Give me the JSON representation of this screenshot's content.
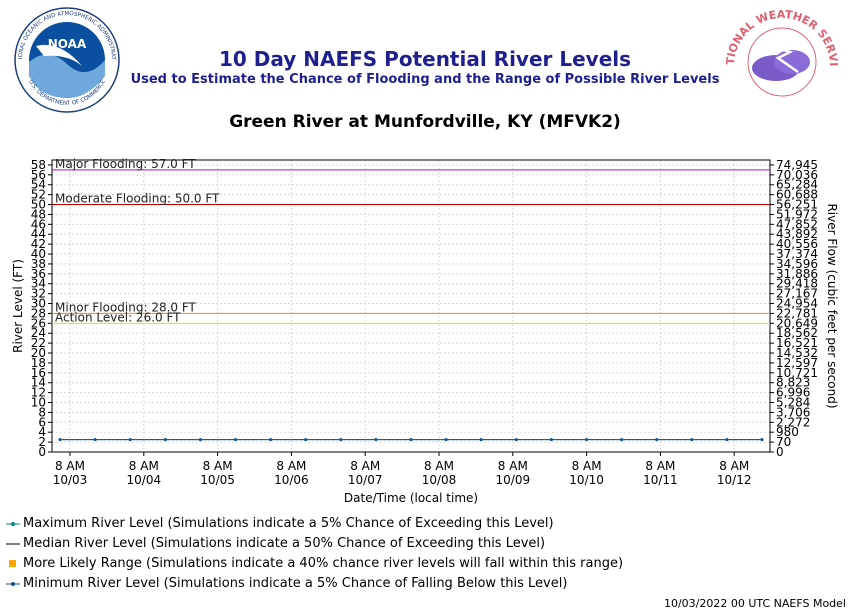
{
  "header": {
    "title": "10 Day NAEFS Potential River Levels",
    "subtitle": "Used to Estimate the Chance of Flooding and the Range of Possible River Levels",
    "station": "Green River at Munfordville, KY (MFVK2)",
    "noaa_logo_text": "NOAA",
    "noaa_ring_text": "NATIONAL OCEANIC AND ATMOSPHERIC ADMINISTRATION",
    "noaa_ring_bottom": "U.S. DEPARTMENT OF COMMERCE",
    "nws_ring_text": "NATIONAL WEATHER SERVICE"
  },
  "footer": {
    "text": "10/03/2022 00 UTC NAEFS Model"
  },
  "legend": [
    {
      "label": "Maximum River Level (Simulations indicate a 5% Chance of Exceeding this Level)",
      "symbol": "line-dot",
      "color": "#008b8b"
    },
    {
      "label": "Median River Level (Simulations indicate a 50% Chance of Exceeding this Level)",
      "symbol": "line",
      "color": "#000000"
    },
    {
      "label": "More Likely Range (Simulations indicate a 40% chance river levels will fall within this range)",
      "symbol": "square",
      "color": "#ffa500"
    },
    {
      "label": "Minimum River Level (Simulations indicate a 5% Chance of Falling Below this Level)",
      "symbol": "line-dot",
      "color": "#1f4f8f"
    }
  ],
  "chart_data": {
    "type": "line",
    "xlabel": "Date/Time (local time)",
    "ylabel": "River Level (FT)",
    "y2label": "River Flow (cubic feet per second)",
    "ylim": [
      0,
      59
    ],
    "y_ticks": [
      0,
      2,
      4,
      6,
      8,
      10,
      12,
      14,
      16,
      18,
      20,
      22,
      24,
      26,
      28,
      30,
      32,
      34,
      36,
      38,
      40,
      42,
      44,
      46,
      48,
      50,
      52,
      54,
      56,
      58
    ],
    "y2_ticks": [
      "0",
      "70",
      "980",
      "2,272",
      "3,706",
      "5,284",
      "6,996",
      "8,823",
      "10,721",
      "12,597",
      "14,532",
      "16,521",
      "18,562",
      "20,649",
      "22,781",
      "24,954",
      "27,167",
      "29,418",
      "31,886",
      "34,596",
      "37,374",
      "40,556",
      "43,892",
      "47,852",
      "51,972",
      "56,251",
      "60,688",
      "65,284",
      "70,036",
      "74,945"
    ],
    "x_tick_labels": [
      {
        "time": "8 AM",
        "date": "10/03"
      },
      {
        "time": "8 AM",
        "date": "10/04"
      },
      {
        "time": "8 AM",
        "date": "10/05"
      },
      {
        "time": "8 AM",
        "date": "10/06"
      },
      {
        "time": "8 AM",
        "date": "10/07"
      },
      {
        "time": "8 AM",
        "date": "10/08"
      },
      {
        "time": "8 AM",
        "date": "10/09"
      },
      {
        "time": "8 AM",
        "date": "10/10"
      },
      {
        "time": "8 AM",
        "date": "10/11"
      },
      {
        "time": "8 AM",
        "date": "10/12"
      }
    ],
    "thresholds": [
      {
        "label": "Major Flooding: 57.0 FT",
        "value": 57.0,
        "color": "#c000c0"
      },
      {
        "label": "Moderate Flooding: 50.0 FT",
        "value": 50.0,
        "color": "#c00000"
      },
      {
        "label": "Minor Flooding: 28.0 FT",
        "value": 28.0,
        "color": "#ff8c00"
      },
      {
        "label": "Action Level: 26.0 FT",
        "value": 26.0,
        "color": "#e6e600"
      }
    ],
    "grid": true,
    "legend_placement": "bottom",
    "series": [
      {
        "name": "Maximum River Level",
        "color": "#008b8b",
        "values": [
          2.5,
          2.5,
          2.5,
          2.5,
          2.5,
          2.5,
          2.5,
          2.5,
          2.5,
          2.5,
          2.5,
          2.5,
          2.5,
          2.5,
          2.5,
          2.5,
          2.5,
          2.5,
          2.5,
          2.5,
          2.5,
          2.5,
          2.5,
          2.5,
          2.5,
          2.5,
          2.5,
          2.5,
          2.5,
          2.5,
          2.5,
          2.5,
          2.5,
          2.5,
          2.5,
          2.5,
          2.5,
          2.5,
          2.5,
          2.5,
          2.5
        ]
      },
      {
        "name": "Minimum River Level",
        "color": "#1f4f8f",
        "values": [
          2.5,
          2.5,
          2.5,
          2.5,
          2.5,
          2.5,
          2.5,
          2.5,
          2.5,
          2.5,
          2.5,
          2.5,
          2.5,
          2.5,
          2.5,
          2.5,
          2.5,
          2.5,
          2.5,
          2.5,
          2.5,
          2.5,
          2.5,
          2.5,
          2.5,
          2.5,
          2.5,
          2.5,
          2.5,
          2.5,
          2.5,
          2.5,
          2.5,
          2.5,
          2.5,
          2.5,
          2.5,
          2.5,
          2.5,
          2.5,
          2.5
        ]
      }
    ]
  }
}
